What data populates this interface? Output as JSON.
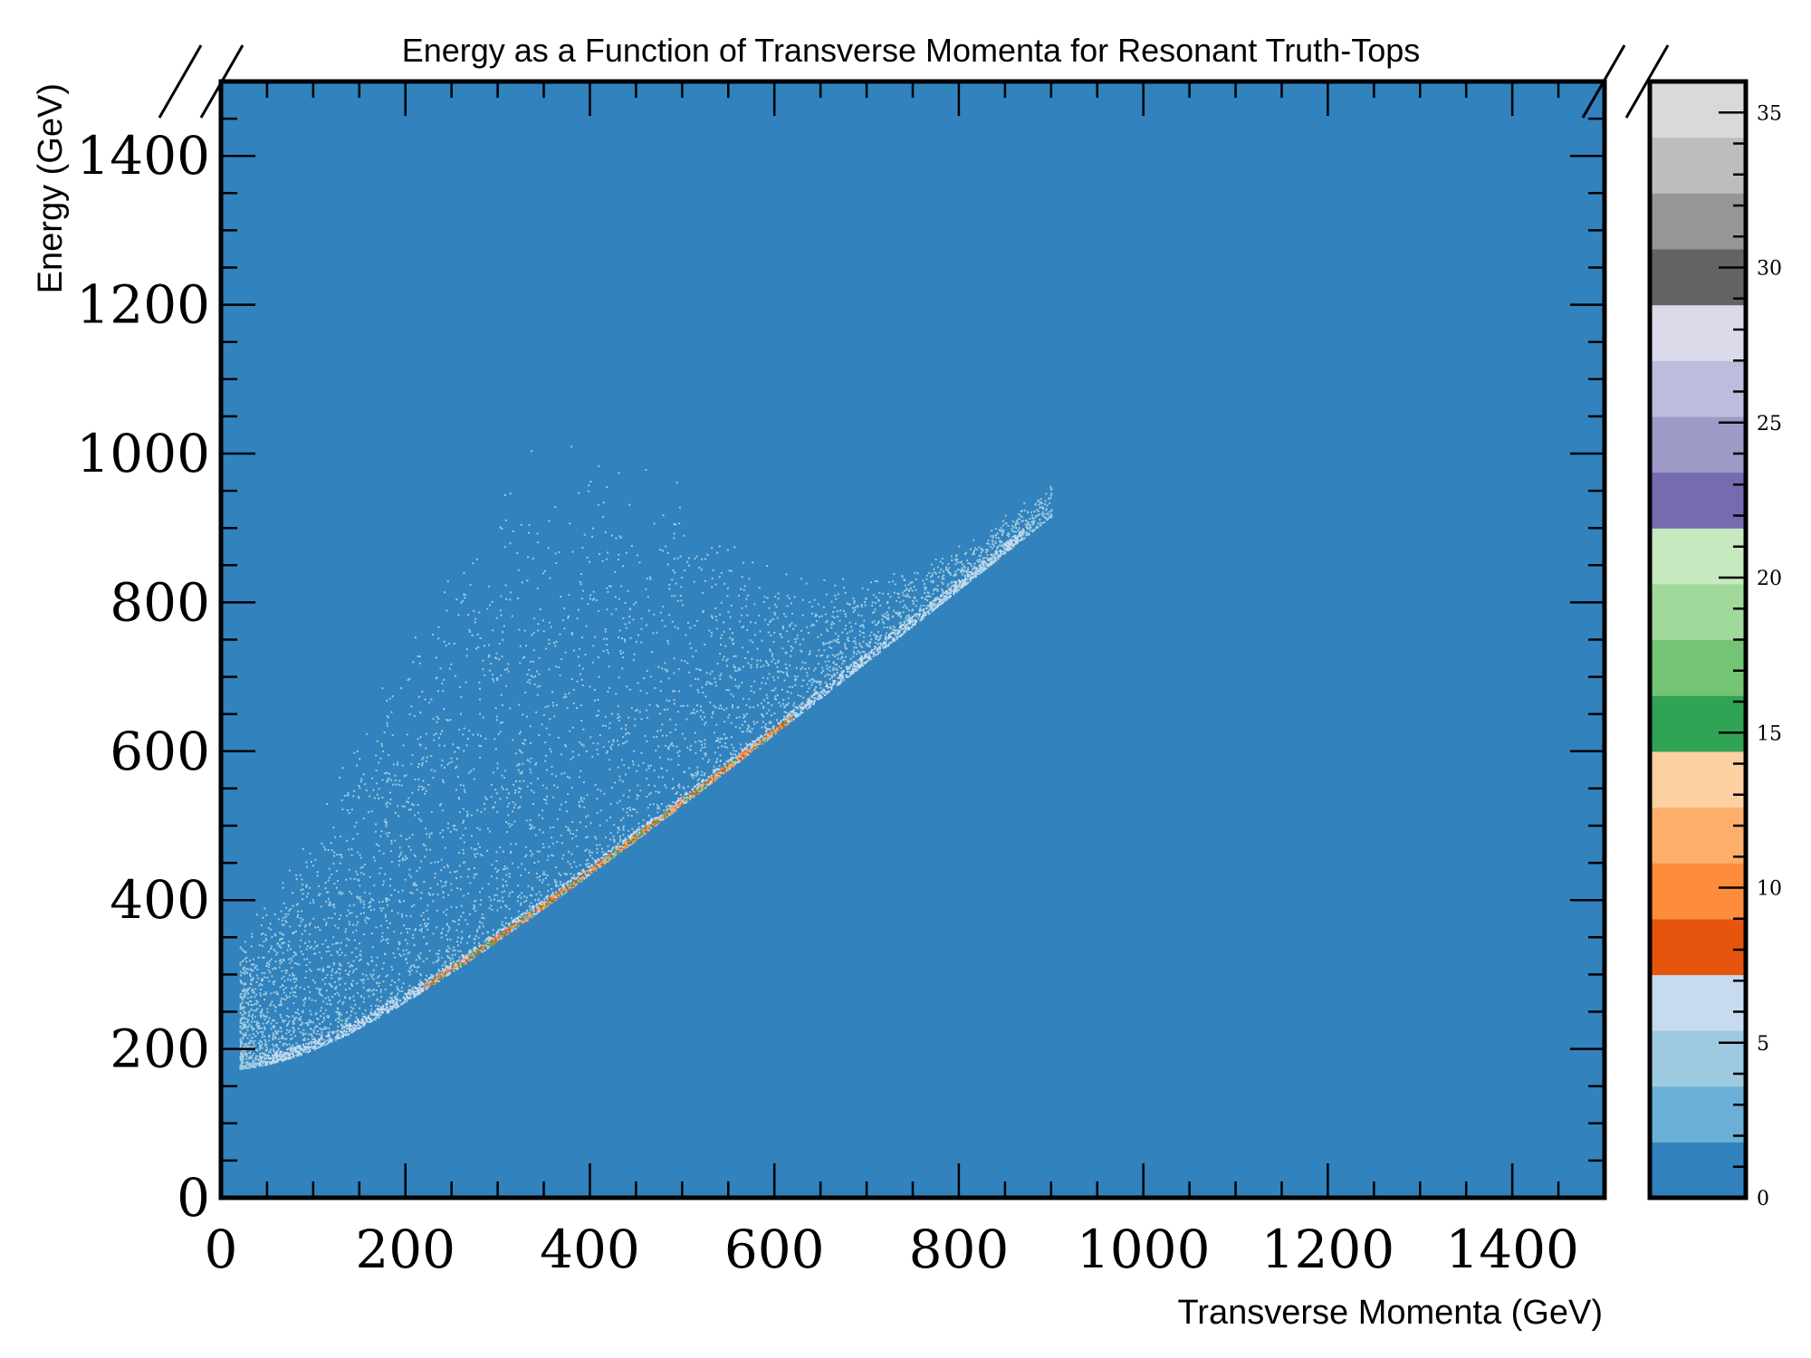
{
  "chart_data": {
    "type": "heatmap",
    "title": "Energy as a Function of Transverse Momenta for Resonant Truth-Tops",
    "xlabel": "Transverse Momenta (GeV)",
    "ylabel": "Energy (GeV)",
    "xlim": [
      0,
      1500
    ],
    "ylim": [
      0,
      1500
    ],
    "x_ticks": [
      "0",
      "200",
      "400",
      "600",
      "800",
      "1000",
      "1200",
      "1400"
    ],
    "y_ticks": [
      "0",
      "200",
      "400",
      "600",
      "800",
      "1000",
      "1200",
      "1400"
    ],
    "colorbar": {
      "range": [
        0,
        36
      ],
      "ticks": [
        "0",
        "5",
        "10",
        "15",
        "20",
        "25",
        "30",
        "35"
      ],
      "levels": [
        0,
        1.8,
        3.6,
        5.4,
        7.2,
        9,
        10.8,
        12.6,
        14.4,
        16.2,
        18,
        19.8,
        21.6,
        23.4,
        25.2,
        27,
        28.8,
        30.6,
        32.4,
        34.2,
        36
      ],
      "colors": [
        "#3182bd",
        "#6baed6",
        "#9ecae1",
        "#c6dbef",
        "#e6550d",
        "#fd8d3c",
        "#fdae6b",
        "#fdd0a2",
        "#31a354",
        "#74c476",
        "#a1d99b",
        "#c7e9c0",
        "#756bb1",
        "#9e9ac8",
        "#bcbddc",
        "#dadaeb",
        "#636363",
        "#969696",
        "#bdbdbd",
        "#d9d9d9"
      ]
    },
    "background_color": "#3182bd",
    "point_color": "#9ecae1",
    "peak_colors": [
      "#fd8d3c",
      "#e6550d",
      "#fdae6b",
      "#31a354"
    ],
    "distribution": {
      "relation": "E = sqrt(pT^2 + m^2) lower edge, scatter above",
      "mass_GeV": 173,
      "edge_points": [
        [
          0,
          173
        ],
        [
          200,
          264
        ],
        [
          400,
          440
        ],
        [
          600,
          627
        ],
        [
          800,
          819
        ],
        [
          900,
          916
        ]
      ],
      "peak_band_pT": [
        220,
        620
      ]
    },
    "grid": false,
    "legend": "none"
  }
}
